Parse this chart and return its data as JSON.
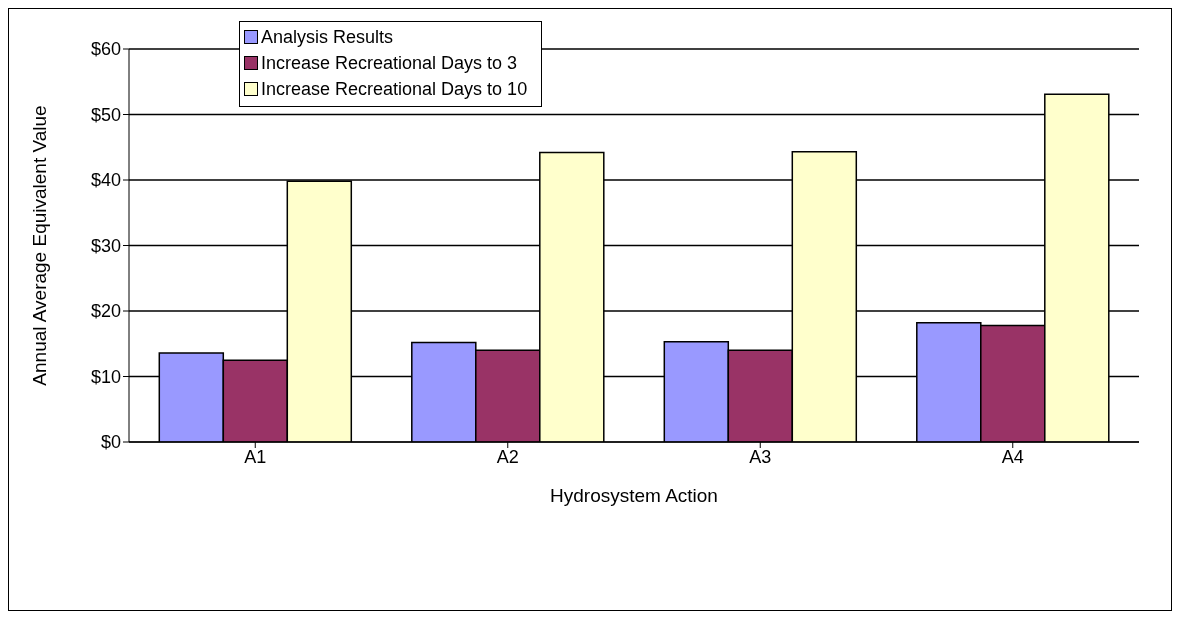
{
  "chart_data": {
    "type": "bar",
    "xlabel": "Hydrosystem Action",
    "ylabel": "Annual Average Equivalent Value",
    "categories": [
      "A1",
      "A2",
      "A3",
      "A4"
    ],
    "series": [
      {
        "name": "Analysis Results",
        "color": "#9999ff",
        "values": [
          13.6,
          15.2,
          15.3,
          18.2
        ]
      },
      {
        "name": "Increase Recreational Days to 3",
        "color": "#993366",
        "values": [
          12.5,
          14.0,
          14.0,
          17.8
        ]
      },
      {
        "name": "Increase Recreational Days to 10",
        "color": "#ffffcc",
        "values": [
          39.8,
          44.2,
          44.3,
          53.1
        ]
      }
    ],
    "ylim": [
      0,
      60
    ],
    "yticks": [
      {
        "value": 0,
        "label": "$0"
      },
      {
        "value": 10,
        "label": "$10"
      },
      {
        "value": 20,
        "label": "$20"
      },
      {
        "value": 30,
        "label": "$30"
      },
      {
        "value": 40,
        "label": "$40"
      },
      {
        "value": 50,
        "label": "$50"
      },
      {
        "value": 60,
        "label": "$60"
      }
    ],
    "grid": "y",
    "legend": "top left"
  }
}
